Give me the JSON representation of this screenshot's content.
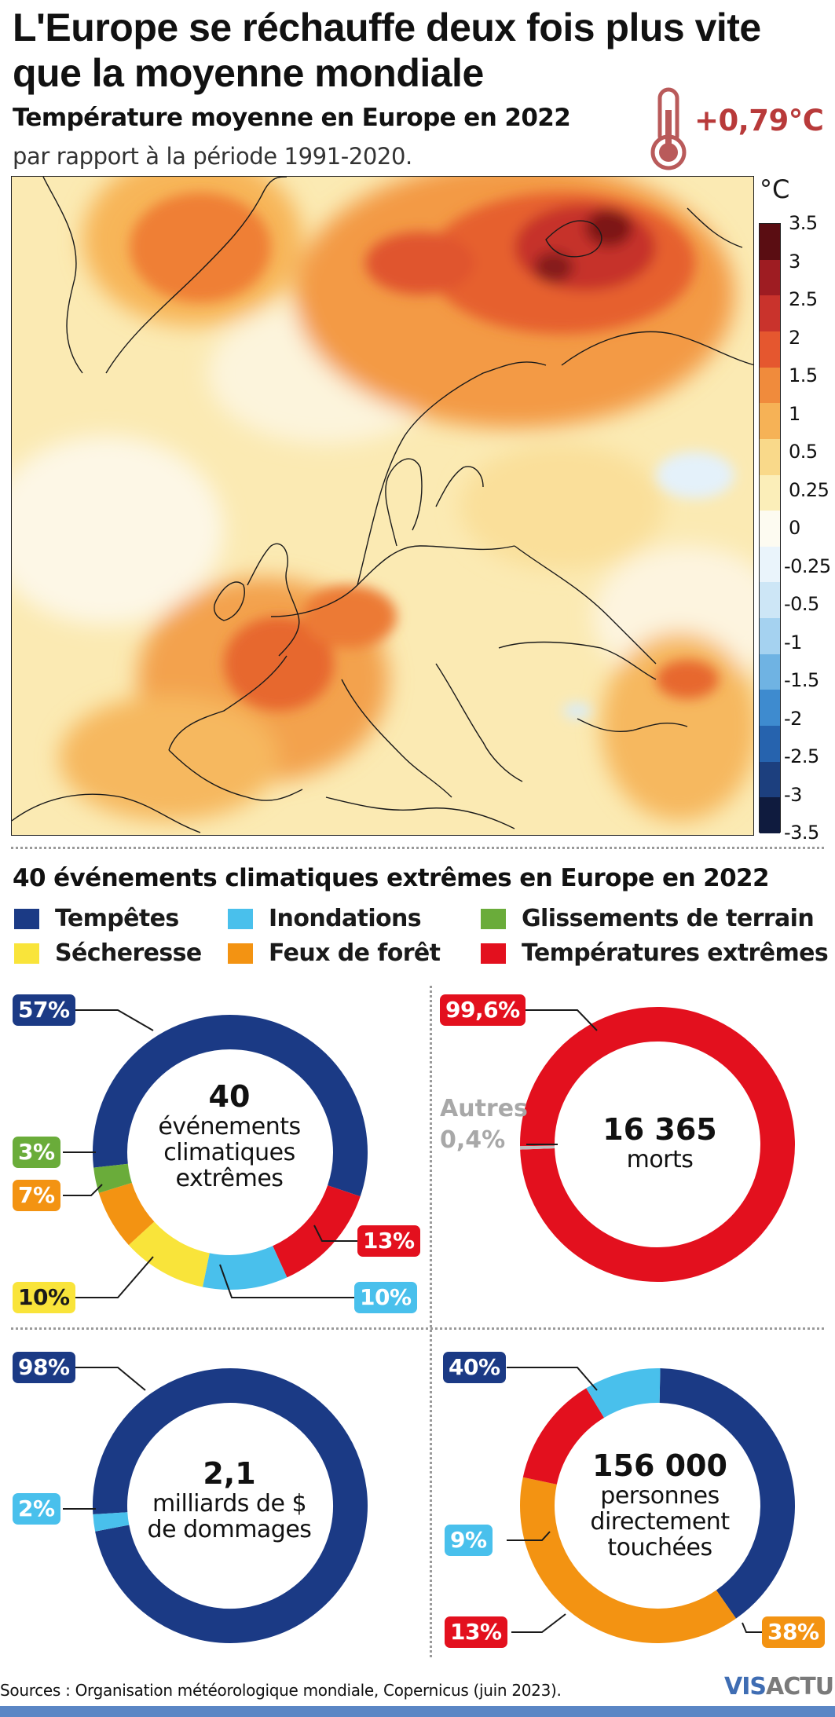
{
  "header": {
    "title": "L'Europe se réchauffe deux fois plus vite que la moyenne mondiale",
    "subtitle": "Température moyenne en Europe en 2022",
    "subtitle2": "par rapport à la période 1991-2020.",
    "anomaly": "+0,79°C"
  },
  "map": {
    "scale_unit": "°C",
    "scale_ticks": [
      "3.5",
      "3",
      "2.5",
      "2",
      "1.5",
      "1",
      "0.5",
      "0.25",
      "0",
      "-0.25",
      "-0.5",
      "-1",
      "-1.5",
      "-2",
      "-2.5",
      "-3",
      "-3.5"
    ],
    "scale_colors": [
      "#5a0d12",
      "#9e1c22",
      "#c9332c",
      "#e5572f",
      "#f08b3c",
      "#f6b256",
      "#f9d98a",
      "#fbeeb9",
      "#fdfbf1",
      "#eaf4fb",
      "#cde6f6",
      "#a5d2f0",
      "#6fb3e3",
      "#3e8bcf",
      "#2663ae",
      "#1c3f7e",
      "#0f1b3e"
    ]
  },
  "events": {
    "title": "40 événements climatiques extrêmes en Europe en 2022",
    "legend": [
      {
        "label": "Tempêtes",
        "color": "#1b3a85"
      },
      {
        "label": "Inondations",
        "color": "#49c0ec"
      },
      {
        "label": "Glissements de terrain",
        "color": "#6aac3a"
      },
      {
        "label": "Sécheresse",
        "color": "#f9e43a"
      },
      {
        "label": "Feux de forêt",
        "color": "#f39312"
      },
      {
        "label": "Températures extrêmes",
        "color": "#e3101e"
      }
    ]
  },
  "donut_events": {
    "center_number": "40",
    "center_label_1": "événements",
    "center_label_2": "climatiques",
    "center_label_3": "extrêmes",
    "labels": {
      "storms": "57%",
      "landslides": "3%",
      "fires": "7%",
      "drought": "10%",
      "extreme": "13%",
      "floods": "10%"
    }
  },
  "donut_deaths": {
    "center_number": "16 365",
    "center_label": "morts",
    "label_extreme": "99,6%",
    "others_1": "Autres",
    "others_2": "0,4%"
  },
  "donut_damage": {
    "center_number": "2,1",
    "center_label_1": "milliards de $",
    "center_label_2": "de dommages",
    "label_storms": "98%",
    "label_floods": "2%"
  },
  "donut_people": {
    "center_number": "156 000",
    "center_label_1": "personnes",
    "center_label_2": "directement",
    "center_label_3": "touchées",
    "label_storms": "40%",
    "label_fires": "38%",
    "label_extreme": "13%",
    "label_floods": "9%"
  },
  "footer": {
    "sources": "Sources : Organisation météorologique mondiale, Copernicus (juin 2023).",
    "logo_vis": "VIS",
    "logo_actu": "ACTU"
  },
  "chart_data": [
    {
      "type": "pie",
      "title": "40 événements climatiques extrêmes",
      "categories": [
        "Tempêtes",
        "Températures extrêmes",
        "Inondations",
        "Sécheresse",
        "Feux de forêt",
        "Glissements de terrain"
      ],
      "values": [
        57,
        13,
        10,
        10,
        7,
        3
      ],
      "unit": "%"
    },
    {
      "type": "pie",
      "title": "16 365 morts",
      "categories": [
        "Températures extrêmes",
        "Autres"
      ],
      "values": [
        99.6,
        0.4
      ],
      "unit": "%"
    },
    {
      "type": "pie",
      "title": "2,1 milliards de $ de dommages",
      "categories": [
        "Tempêtes",
        "Inondations"
      ],
      "values": [
        98,
        2
      ],
      "unit": "%"
    },
    {
      "type": "pie",
      "title": "156 000 personnes directement touchées",
      "categories": [
        "Tempêtes",
        "Feux de forêt",
        "Températures extrêmes",
        "Inondations"
      ],
      "values": [
        40,
        38,
        13,
        9
      ],
      "unit": "%"
    }
  ]
}
